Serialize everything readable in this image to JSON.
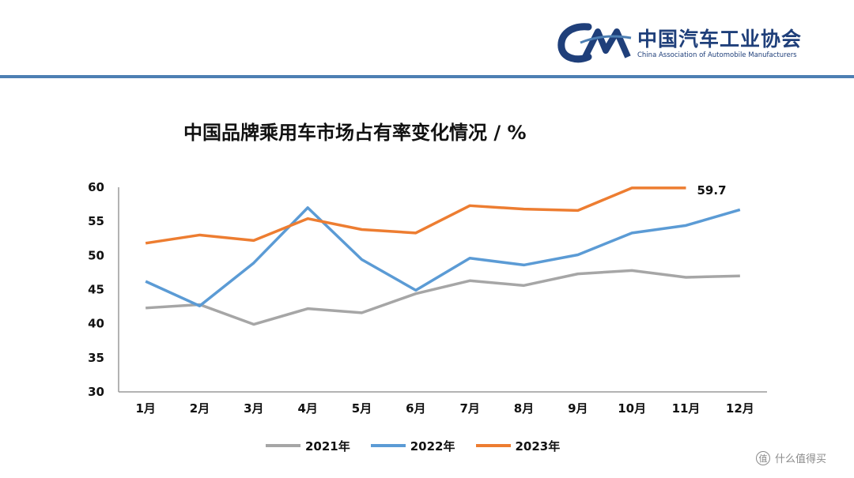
{
  "header": {
    "logo_mark": "CAM",
    "logo_cn": "中国汽车工业协会",
    "logo_en": "China Association of Automobile Manufacturers"
  },
  "colors": {
    "rule": "#4d7fb3",
    "series_2021": "#a6a6a6",
    "series_2022": "#5b9bd5",
    "series_2023": "#ed7d31"
  },
  "footer": {
    "icon": "值",
    "text": "什么值得买"
  },
  "chart_data": {
    "type": "line",
    "title": "中国品牌乘用车市场占有率变化情况 / %",
    "categories": [
      "1月",
      "2月",
      "3月",
      "4月",
      "5月",
      "6月",
      "7月",
      "8月",
      "9月",
      "10月",
      "11月",
      "12月"
    ],
    "y_ticks": [
      "30",
      "35",
      "40",
      "45",
      "50",
      "55",
      "60"
    ],
    "ylim": [
      30,
      60
    ],
    "grid": false,
    "legend": "bottom",
    "series": [
      {
        "name": "2021年",
        "color": "#a6a6a6",
        "values": [
          42.3,
          42.8,
          39.9,
          42.2,
          41.6,
          44.4,
          46.3,
          45.6,
          47.3,
          47.8,
          46.8,
          47.0
        ]
      },
      {
        "name": "2022年",
        "color": "#5b9bd5",
        "values": [
          46.2,
          42.6,
          48.9,
          57.0,
          49.4,
          44.9,
          49.6,
          48.6,
          50.1,
          53.3,
          54.4,
          56.7
        ]
      },
      {
        "name": "2023年",
        "color": "#ed7d31",
        "values": [
          51.8,
          53.0,
          52.2,
          55.4,
          53.8,
          53.3,
          57.3,
          56.8,
          56.6,
          59.9,
          59.9,
          null
        ]
      }
    ],
    "annotation": "59.7"
  }
}
